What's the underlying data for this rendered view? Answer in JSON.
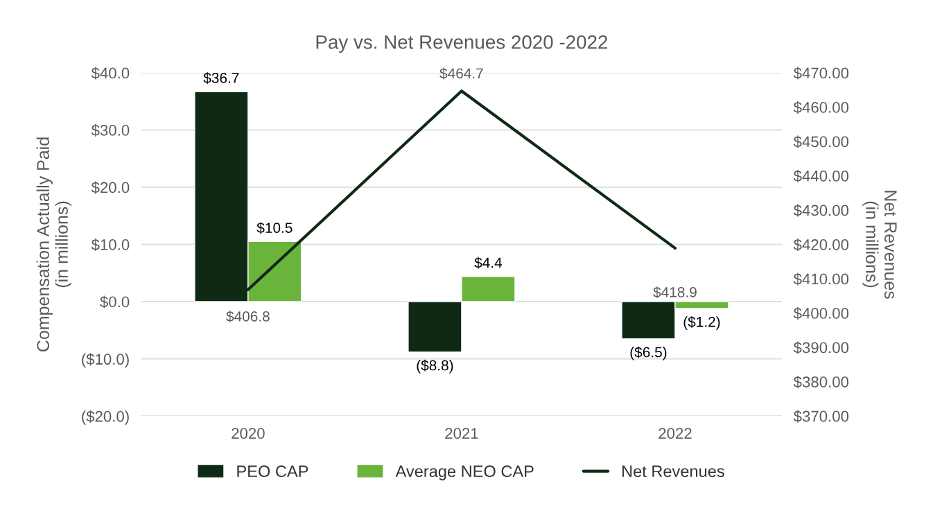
{
  "chart_data": {
    "type": "bar",
    "title": "Pay vs. Net Revenues 2020 -2022",
    "ylabel": "Compensation Actually Paid\n(in millions)",
    "y2label": "Net Revenues\n(in millions)",
    "categories": [
      "2020",
      "2021",
      "2022"
    ],
    "series": [
      {
        "name": "PEO CAP",
        "color": "#0f2a14",
        "values": [
          36.7,
          -8.8,
          -6.5
        ],
        "value_labels": [
          "$36.7",
          "($8.8)",
          "($6.5)"
        ]
      },
      {
        "name": "Average NEO CAP",
        "color": "#6ab43c",
        "values": [
          10.5,
          4.4,
          -1.2
        ],
        "value_labels": [
          "$10.5",
          "$4.4",
          "($1.2)"
        ]
      },
      {
        "name": "Net Revenues",
        "type": "line",
        "axis": "y2",
        "color": "#0f2a14",
        "values": [
          406.8,
          464.7,
          418.9
        ],
        "value_labels": [
          "$406.8",
          "$464.7",
          "$418.9"
        ]
      }
    ],
    "ylim": [
      -20,
      40
    ],
    "yticks": [
      {
        "value": -20,
        "label": "($20.0)"
      },
      {
        "value": -10,
        "label": "($10.0)"
      },
      {
        "value": 0,
        "label": "$0.0"
      },
      {
        "value": 10,
        "label": "$10.0"
      },
      {
        "value": 20,
        "label": "$20.0"
      },
      {
        "value": 30,
        "label": "$30.0"
      },
      {
        "value": 40,
        "label": "$40.0"
      }
    ],
    "y2lim": [
      370,
      470
    ],
    "y2ticks": [
      {
        "value": 370,
        "label": "$370.00"
      },
      {
        "value": 380,
        "label": "$380.00"
      },
      {
        "value": 390,
        "label": "$390.00"
      },
      {
        "value": 400,
        "label": "$400.00"
      },
      {
        "value": 410,
        "label": "$410.00"
      },
      {
        "value": 420,
        "label": "$420.00"
      },
      {
        "value": 430,
        "label": "$430.00"
      },
      {
        "value": 440,
        "label": "$440.00"
      },
      {
        "value": 450,
        "label": "$450.00"
      },
      {
        "value": 460,
        "label": "$460.00"
      },
      {
        "value": 470,
        "label": "$470.00"
      }
    ],
    "grid": "y",
    "legend": "bottom"
  }
}
